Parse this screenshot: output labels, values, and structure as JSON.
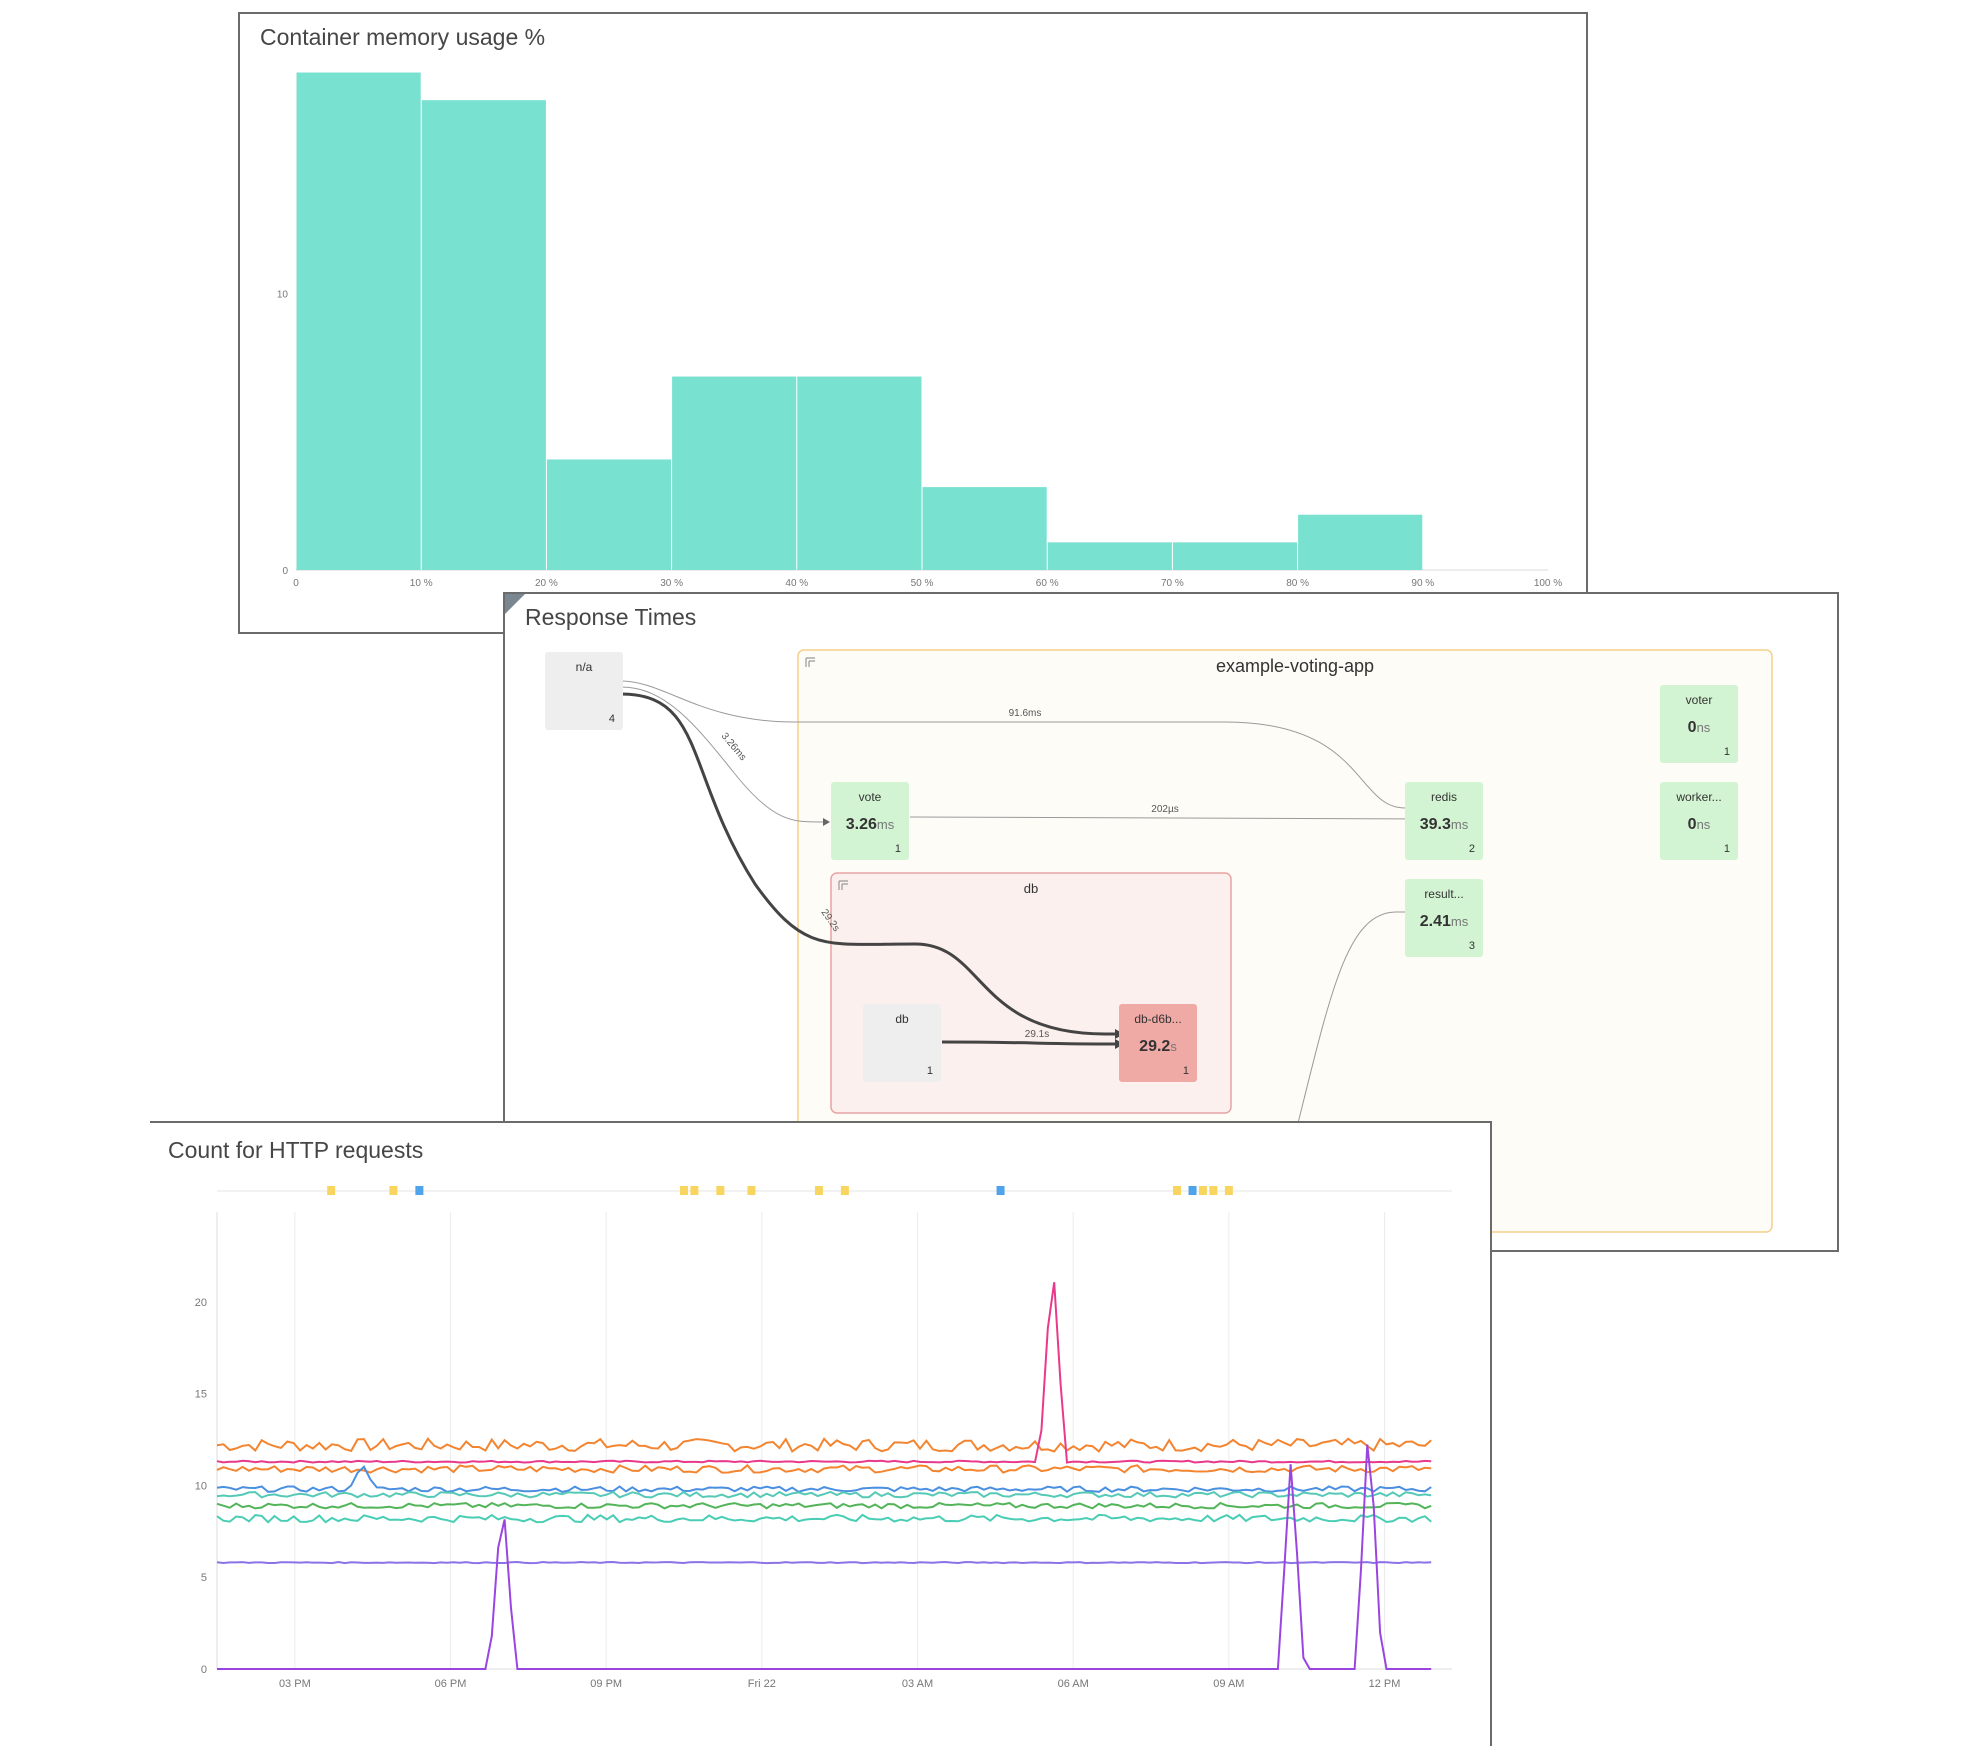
{
  "memory_panel": {
    "title": "Container memory usage %",
    "color": "#79e1d0"
  },
  "response_panel": {
    "title": "Response Times",
    "group": {
      "title": "example-voting-app"
    },
    "subgroup": {
      "title": "db"
    },
    "nodes": [
      {
        "id": "na",
        "name": "n/a",
        "value": "",
        "unit": "",
        "count": "4",
        "status": "neutral"
      },
      {
        "id": "vote",
        "name": "vote",
        "value": "3.26",
        "unit": "ms",
        "count": "1",
        "status": "ok"
      },
      {
        "id": "redis",
        "name": "redis",
        "value": "39.3",
        "unit": "ms",
        "count": "2",
        "status": "ok"
      },
      {
        "id": "voter",
        "name": "voter",
        "value": "0",
        "unit": "ns",
        "count": "1",
        "status": "ok"
      },
      {
        "id": "worker",
        "name": "worker...",
        "value": "0",
        "unit": "ns",
        "count": "1",
        "status": "ok"
      },
      {
        "id": "result",
        "name": "result...",
        "value": "2.41",
        "unit": "ms",
        "count": "3",
        "status": "ok"
      },
      {
        "id": "db",
        "name": "db",
        "value": "",
        "unit": "",
        "count": "1",
        "status": "neutral"
      },
      {
        "id": "dbd6b",
        "name": "db-d6b...",
        "value": "29.2",
        "unit": "s",
        "count": "1",
        "status": "error"
      }
    ],
    "edges": [
      {
        "from": "na",
        "to": "redis",
        "label": "91.6ms"
      },
      {
        "from": "na",
        "to": "vote",
        "label": "3.26ms"
      },
      {
        "from": "vote",
        "to": "redis",
        "label": "202µs"
      },
      {
        "from": "na",
        "to": "dbd6b",
        "label": "29.2s"
      },
      {
        "from": "db",
        "to": "dbd6b",
        "label": "29.1s"
      },
      {
        "from": "external",
        "to": "result",
        "label": ""
      }
    ],
    "colors": {
      "ok": "#d3f4d2",
      "error": "#f0aaa6",
      "neutral": "#eeeeee",
      "group_border": "#f5d08a",
      "subgroup_border": "#e8a3a3"
    }
  },
  "http_panel": {
    "title": "Count for HTTP requests",
    "event_marker_colors": {
      "warning": "#f8d55e",
      "info": "#4ea3ea"
    }
  },
  "chart_data": [
    {
      "type": "bar",
      "title": "Container memory usage %",
      "categories": [
        "0-10 %",
        "10-20 %",
        "20-30 %",
        "30-40 %",
        "40-50 %",
        "50-60 %",
        "60-70 %",
        "70-80 %",
        "80-90 %"
      ],
      "values": [
        18,
        17,
        4,
        7,
        7,
        3,
        1,
        1,
        2
      ],
      "x_ticks": [
        "0",
        "10 %",
        "20 %",
        "30 %",
        "40 %",
        "50 %",
        "60 %",
        "70 %",
        "80 %",
        "90 %",
        "100 %"
      ],
      "y_ticks": [
        "0",
        "10"
      ],
      "ylim": [
        0,
        18.2
      ],
      "color": "#79e1d0"
    },
    {
      "type": "line",
      "title": "Count for HTTP requests",
      "x_ticks": [
        "03 PM",
        "06 PM",
        "09 PM",
        "Fri 22",
        "03 AM",
        "06 AM",
        "09 AM",
        "12 PM"
      ],
      "x_tick_hours": [
        0,
        3,
        6,
        9,
        12,
        15,
        18,
        21
      ],
      "x_range_hours": [
        -1.5,
        22.3
      ],
      "y_ticks": [
        "0",
        "5",
        "10",
        "15",
        "20"
      ],
      "ylim": [
        0,
        24.9
      ],
      "series": [
        {
          "color": "#f38530",
          "base": 12.2,
          "noise": 0.35
        },
        {
          "color": "#e8398c",
          "base": 11.3,
          "noise": 0.05,
          "spikes": [
            [
              14.6,
              22.6
            ],
            [
              22.6,
              22.6
            ]
          ]
        },
        {
          "color": "#f38530",
          "base": 10.9,
          "noise": 0.2
        },
        {
          "color": "#4a8fe0",
          "base": 9.8,
          "noise": 0.15,
          "spikes": [
            [
              1.3,
              11.2
            ]
          ]
        },
        {
          "color": "#56c9b6",
          "base": 9.5,
          "noise": 0.15
        },
        {
          "color": "#53b459",
          "base": 8.9,
          "noise": 0.15
        },
        {
          "color": "#49cdb4",
          "base": 8.2,
          "noise": 0.2
        },
        {
          "color": "#8c72e6",
          "base": 5.8,
          "noise": 0.03
        },
        {
          "color": "#9b45e0",
          "base": 0,
          "noise": 0,
          "spikes": [
            [
              4.0,
              9.8
            ],
            [
              19.2,
              11.6
            ],
            [
              20.7,
              14.0
            ]
          ]
        }
      ],
      "events": [
        {
          "hour": 0.7,
          "kind": "warning"
        },
        {
          "hour": 1.9,
          "kind": "warning"
        },
        {
          "hour": 2.4,
          "kind": "info"
        },
        {
          "hour": 7.5,
          "kind": "warning"
        },
        {
          "hour": 7.7,
          "kind": "warning"
        },
        {
          "hour": 8.2,
          "kind": "warning"
        },
        {
          "hour": 8.8,
          "kind": "warning"
        },
        {
          "hour": 10.1,
          "kind": "warning"
        },
        {
          "hour": 10.6,
          "kind": "warning"
        },
        {
          "hour": 13.6,
          "kind": "info"
        },
        {
          "hour": 17.0,
          "kind": "warning"
        },
        {
          "hour": 17.3,
          "kind": "info"
        },
        {
          "hour": 17.5,
          "kind": "warning"
        },
        {
          "hour": 17.7,
          "kind": "warning"
        },
        {
          "hour": 18.0,
          "kind": "warning"
        }
      ]
    }
  ]
}
